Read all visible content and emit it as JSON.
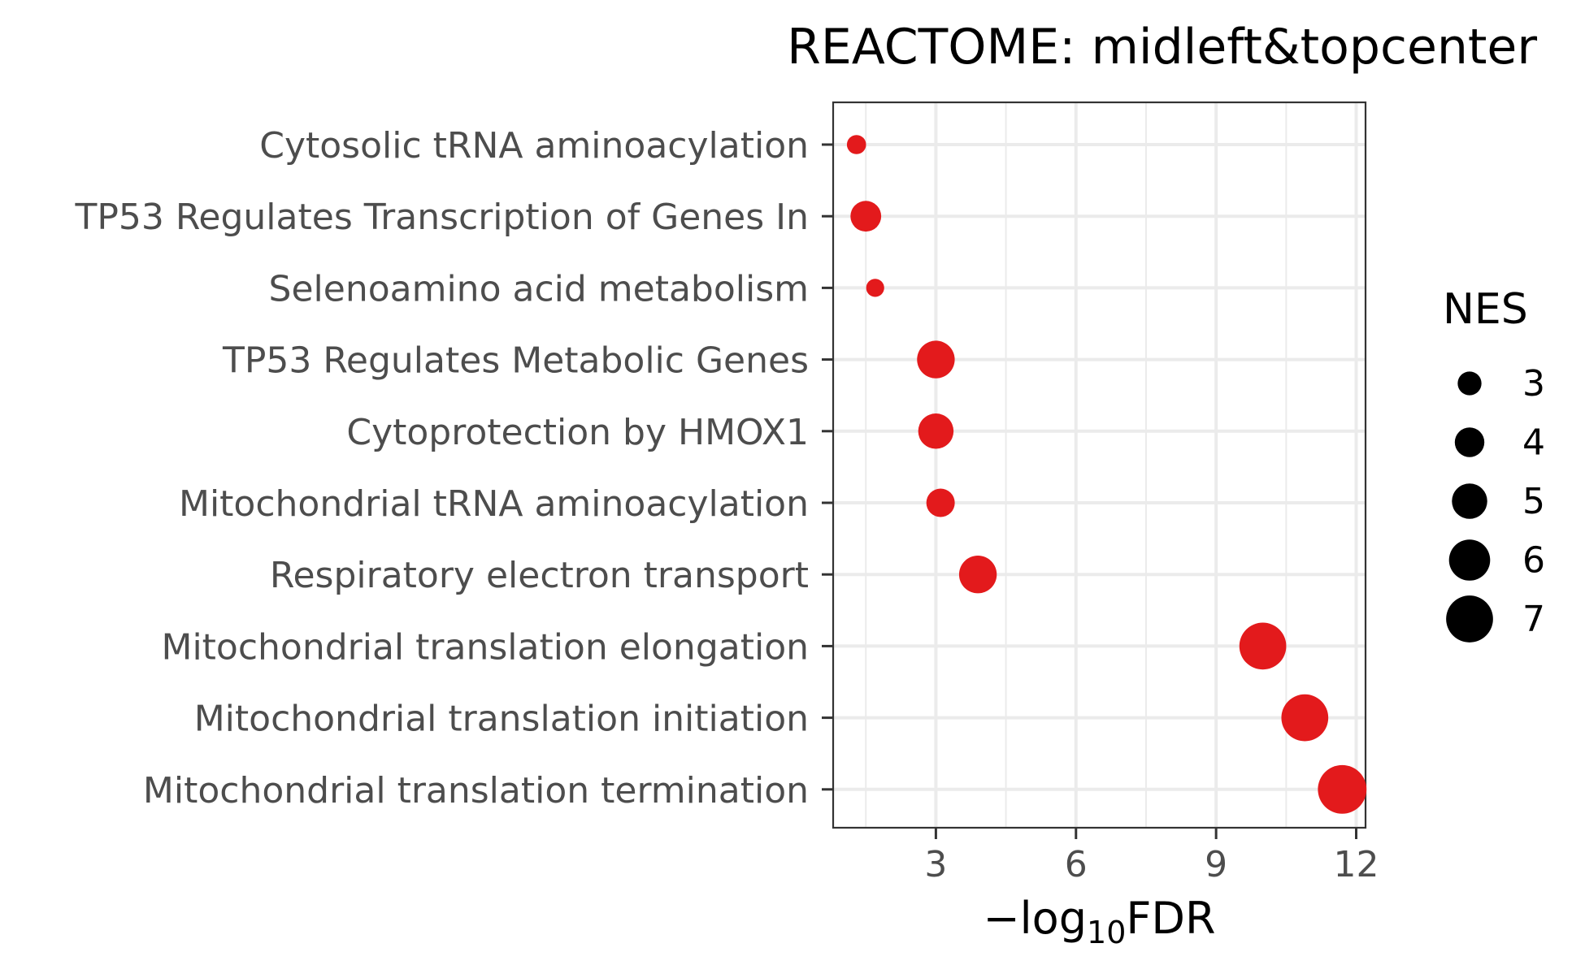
{
  "chart_data": {
    "type": "scatter",
    "title": "REACTOME: midleft&topcenter",
    "xlabel": {
      "prefix": "−log",
      "subscript": "10",
      "suffix": "FDR"
    },
    "ylabel": "",
    "xlim": [
      0.8,
      12.2
    ],
    "x_ticks": [
      3,
      6,
      9,
      12
    ],
    "grid": true,
    "color": "#e31a1c",
    "categories": [
      "Cytosolic tRNA aminoacylation",
      "TP53 Regulates Transcription of Genes In",
      "Selenoamino acid metabolism",
      "TP53 Regulates Metabolic Genes",
      "Cytoprotection by HMOX1",
      "Mitochondrial tRNA aminoacylation",
      "Respiratory electron transport",
      "Mitochondrial translation elongation",
      "Mitochondrial translation initiation",
      "Mitochondrial translation termination"
    ],
    "points": [
      {
        "term": "Cytosolic tRNA aminoacylation",
        "x": 1.3,
        "nes": 2.2
      },
      {
        "term": "TP53 Regulates Transcription of Genes In",
        "x": 1.5,
        "nes": 4.2
      },
      {
        "term": "Selenoamino acid metabolism",
        "x": 1.7,
        "nes": 2.0
      },
      {
        "term": "TP53 Regulates Metabolic Genes",
        "x": 3.0,
        "nes": 5.4
      },
      {
        "term": "Cytoprotection by HMOX1",
        "x": 3.0,
        "nes": 5.0
      },
      {
        "term": "Mitochondrial tRNA aminoacylation",
        "x": 3.1,
        "nes": 3.8
      },
      {
        "term": "Respiratory electron transport",
        "x": 3.9,
        "nes": 5.4
      },
      {
        "term": "Mitochondrial translation elongation",
        "x": 10.0,
        "nes": 7.0
      },
      {
        "term": "Mitochondrial translation initiation",
        "x": 10.9,
        "nes": 7.0
      },
      {
        "term": "Mitochondrial translation termination",
        "x": 11.7,
        "nes": 7.3
      }
    ],
    "legend": {
      "title": "NES",
      "placement": "right",
      "color": "#000000",
      "values": [
        3,
        4,
        5,
        6,
        7
      ]
    }
  }
}
